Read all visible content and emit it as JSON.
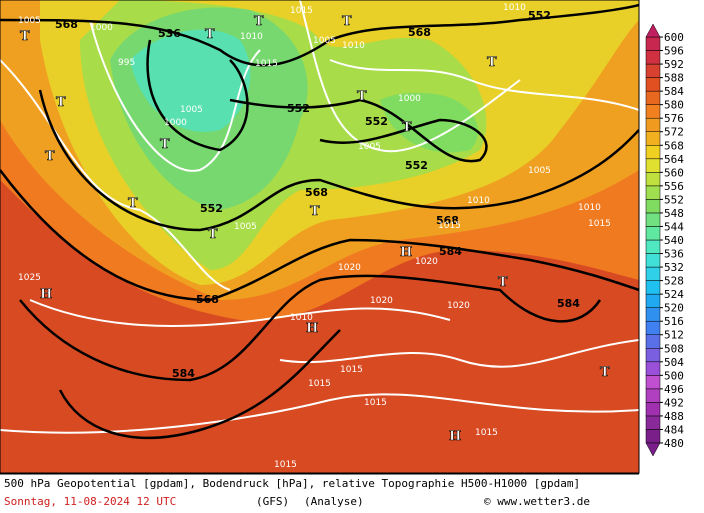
{
  "map": {
    "labels": [
      "568",
      "536",
      "552",
      "552",
      "552",
      "552",
      "568",
      "568",
      "584",
      "568",
      "584",
      "584",
      "552",
      "568",
      "1005",
      "1000",
      "1010",
      "1015",
      "1005",
      "1010",
      "1010",
      "995",
      "1000",
      "1005",
      "1015",
      "1000",
      "1005",
      "1010",
      "1015",
      "1005",
      "1020",
      "1020",
      "1020",
      "1010",
      "1015",
      "1015",
      "1015",
      "1015",
      "1015",
      "1020",
      "1025",
      "1005",
      "1010",
      "1015",
      "T",
      "T",
      "T",
      "T",
      "T",
      "T",
      "T",
      "T",
      "T",
      "T",
      "T",
      "T",
      "T",
      "T",
      "T",
      "H",
      "H",
      "H",
      "H"
    ]
  },
  "colorbar": {
    "levels": [
      480,
      484,
      488,
      492,
      496,
      500,
      504,
      508,
      512,
      516,
      520,
      524,
      528,
      532,
      536,
      540,
      544,
      548,
      552,
      556,
      560,
      564,
      568,
      572,
      576,
      580,
      584,
      588,
      592,
      596,
      600
    ],
    "colors": [
      "#7a1f8a",
      "#8a2a9a",
      "#a030b0",
      "#b040c0",
      "#c050d0",
      "#9a50d8",
      "#7a60e0",
      "#5a70e8",
      "#4080f0",
      "#3090f0",
      "#20a8f0",
      "#20c0f0",
      "#30d0e8",
      "#40e0d8",
      "#50e8c0",
      "#60e8a0",
      "#70e080",
      "#80dc60",
      "#a0e050",
      "#c0e040",
      "#e0e030",
      "#f0d020",
      "#f0b020",
      "#f09a20",
      "#f08020",
      "#e86820",
      "#e05020",
      "#d84030",
      "#d03040",
      "#c82850",
      "#c02060"
    ]
  },
  "footer": {
    "title": "500 hPa Geopotential [gpdam], Bodendruck [hPa], relative Topographie H500-H1000 [gpdam]",
    "date": "Sonntag, 11-08-2024  12 UTC",
    "model": "(GFS)",
    "run": "(Analyse)",
    "source": "© www.wetter3.de"
  }
}
